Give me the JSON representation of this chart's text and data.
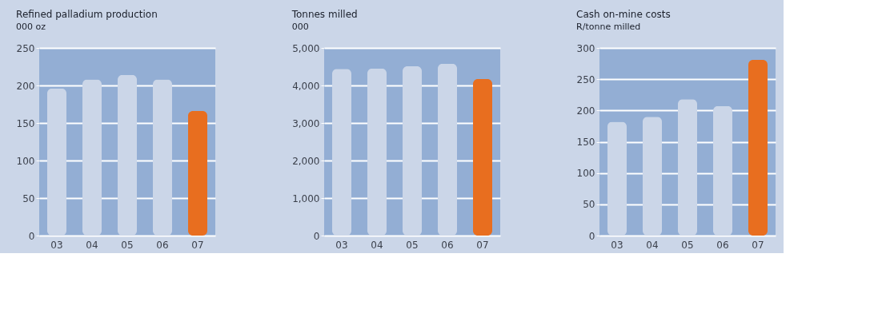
{
  "chart_data": [
    {
      "type": "bar",
      "title": "Refined palladium production",
      "subtitle": "000 oz",
      "categories": [
        "03",
        "04",
        "05",
        "06",
        "07"
      ],
      "values": [
        196,
        208,
        214,
        208,
        166
      ],
      "colors": [
        "#cbd6e8",
        "#cbd6e8",
        "#cbd6e8",
        "#cbd6e8",
        "#e86e1f"
      ],
      "ylim": [
        0,
        250
      ],
      "yticks": [
        0,
        50,
        100,
        150,
        200,
        250
      ],
      "grid": "y"
    },
    {
      "type": "bar",
      "title": "Tonnes milled",
      "subtitle": "000",
      "categories": [
        "03",
        "04",
        "05",
        "06",
        "07"
      ],
      "values": [
        4440,
        4450,
        4510,
        4580,
        4170
      ],
      "colors": [
        "#cbd6e8",
        "#cbd6e8",
        "#cbd6e8",
        "#cbd6e8",
        "#e86e1f"
      ],
      "ylim": [
        0,
        5000
      ],
      "yticks": [
        0,
        {
          "value": 1000,
          "label": "1,000"
        },
        {
          "value": 2000,
          "label": "2,000"
        },
        {
          "value": 3000,
          "label": "3,000"
        },
        {
          "value": 4000,
          "label": "4,000"
        },
        {
          "value": 5000,
          "label": "5,000"
        }
      ],
      "grid": "y"
    },
    {
      "type": "bar",
      "title": "Cash on-mine costs",
      "subtitle": "R/tonne milled",
      "categories": [
        "03",
        "04",
        "05",
        "06",
        "07"
      ],
      "values": [
        182,
        190,
        218,
        207,
        281
      ],
      "colors": [
        "#cbd6e8",
        "#cbd6e8",
        "#cbd6e8",
        "#cbd6e8",
        "#e86e1f"
      ],
      "ylim": [
        0,
        300
      ],
      "yticks": [
        0,
        50,
        100,
        150,
        200,
        250,
        300
      ],
      "grid": "y"
    }
  ]
}
